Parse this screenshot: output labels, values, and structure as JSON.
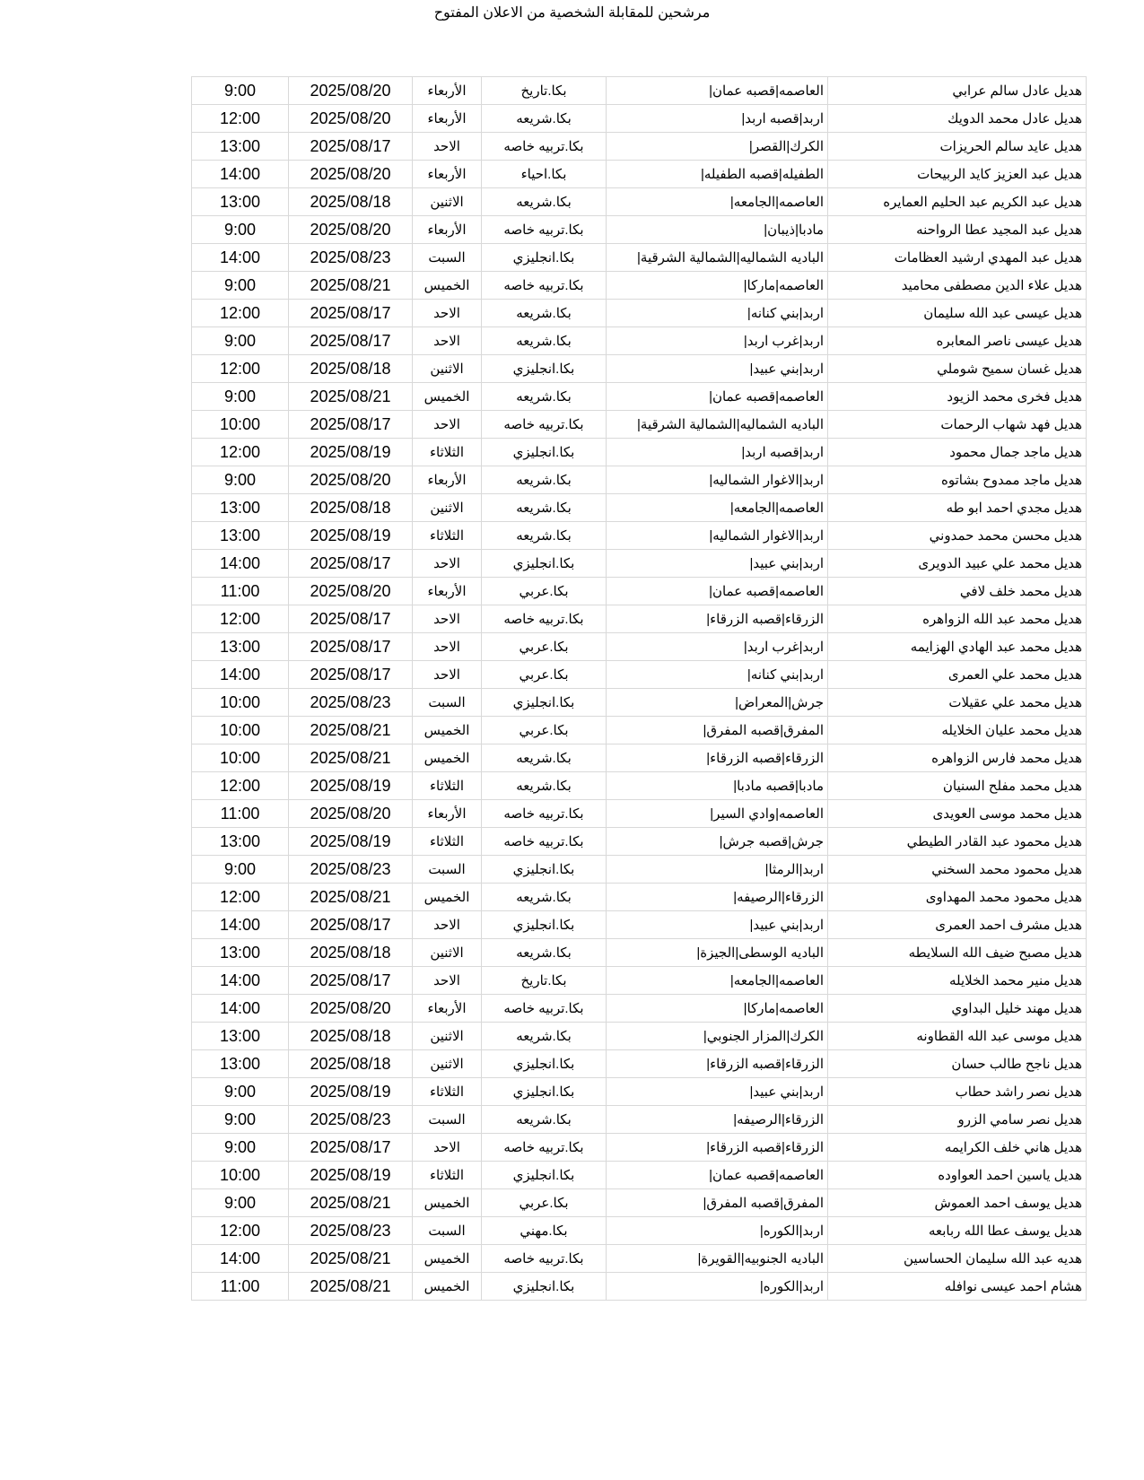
{
  "title": "مرشحين للمقابلة الشخصية من الاعلان المفتوح",
  "rows": [
    [
      "هديل عادل سالم عرابي",
      "العاصمه|قصبه عمان|",
      "بكا.تاريخ",
      "الأربعاء",
      "2025/08/20",
      "9:00"
    ],
    [
      "هديل عادل محمد الدويك",
      "اربد|قصبه اربد|",
      "بكا.شريعه",
      "الأربعاء",
      "2025/08/20",
      "12:00"
    ],
    [
      "هديل عايد سالم الحريزات",
      "الكرك|القصر|",
      "بكا.تربيه خاصه",
      "الاحد",
      "2025/08/17",
      "13:00"
    ],
    [
      "هديل عبد العزيز كايد الربيحات",
      "الطفيله|قصبه الطفيله|",
      "بكا.احياء",
      "الأربعاء",
      "2025/08/20",
      "14:00"
    ],
    [
      "هديل عبد الكريم عبد الحليم العمايره",
      "العاصمه|الجامعه|",
      "بكا.شريعه",
      "الاثنين",
      "2025/08/18",
      "13:00"
    ],
    [
      "هديل عبد المجيد عطا الرواحنه",
      "مادبا|ذيبان|",
      "بكا.تربيه خاصه",
      "الأربعاء",
      "2025/08/20",
      "9:00"
    ],
    [
      "هديل عبد المهدي ارشيد العظامات",
      "الباديه الشماليه|الشمالية الشرقية|",
      "بكا.انجليزي",
      "السبت",
      "2025/08/23",
      "14:00"
    ],
    [
      "هديل علاء الدين مصطفى محاميد",
      "العاصمه|ماركا|",
      "بكا.تربيه خاصه",
      "الخميس",
      "2025/08/21",
      "9:00"
    ],
    [
      "هديل عيسى عبد الله سليمان",
      "اربد|بني كنانه|",
      "بكا.شريعه",
      "الاحد",
      "2025/08/17",
      "12:00"
    ],
    [
      "هديل عيسى ناصر المعابره",
      "اربد|غرب اربد|",
      "بكا.شريعه",
      "الاحد",
      "2025/08/17",
      "9:00"
    ],
    [
      "هديل غسان سميح شوملي",
      "اربد|بني عبيد|",
      "بكا.انجليزي",
      "الاثنين",
      "2025/08/18",
      "12:00"
    ],
    [
      "هديل فخرى محمد الزيود",
      "العاصمه|قصبه عمان|",
      "بكا.شريعه",
      "الخميس",
      "2025/08/21",
      "9:00"
    ],
    [
      "هديل فهد شهاب الرحمات",
      "الباديه الشماليه|الشمالية الشرقية|",
      "بكا.تربيه خاصه",
      "الاحد",
      "2025/08/17",
      "10:00"
    ],
    [
      "هديل ماجد جمال محمود",
      "اربد|قصبه اربد|",
      "بكا.انجليزي",
      "الثلاثاء",
      "2025/08/19",
      "12:00"
    ],
    [
      "هديل ماجد ممدوح بشاتوه",
      "اربد|الاغوار الشماليه|",
      "بكا.شريعه",
      "الأربعاء",
      "2025/08/20",
      "9:00"
    ],
    [
      "هديل مجدي احمد ابو طه",
      "العاصمه|الجامعه|",
      "بكا.شريعه",
      "الاثنين",
      "2025/08/18",
      "13:00"
    ],
    [
      "هديل محسن محمد حمدوني",
      "اربد|الاغوار الشماليه|",
      "بكا.شريعه",
      "الثلاثاء",
      "2025/08/19",
      "13:00"
    ],
    [
      "هديل محمد  علي عبيد الدويرى",
      "اربد|بني عبيد|",
      "بكا.انجليزي",
      "الاحد",
      "2025/08/17",
      "14:00"
    ],
    [
      "هديل محمد خلف لافي",
      "العاصمه|قصبه عمان|",
      "بكا.عربي",
      "الأربعاء",
      "2025/08/20",
      "11:00"
    ],
    [
      "هديل محمد عبد الله الزواهره",
      "الزرقاء|قصبه الزرقاء|",
      "بكا.تربيه خاصه",
      "الاحد",
      "2025/08/17",
      "12:00"
    ],
    [
      "هديل محمد عبد الهادي الهزايمه",
      "اربد|غرب اربد|",
      "بكا.عربي",
      "الاحد",
      "2025/08/17",
      "13:00"
    ],
    [
      "هديل محمد علي العمرى",
      "اربد|بني كنانه|",
      "بكا.عربي",
      "الاحد",
      "2025/08/17",
      "14:00"
    ],
    [
      "هديل محمد علي عقيلات",
      "جرش|المعراض|",
      "بكا.انجليزي",
      "السبت",
      "2025/08/23",
      "10:00"
    ],
    [
      "هديل محمد عليان الخلايله",
      "المفرق|قصبه المفرق|",
      "بكا.عربي",
      "الخميس",
      "2025/08/21",
      "10:00"
    ],
    [
      "هديل محمد فارس الزواهره",
      "الزرقاء|قصبه الزرقاء|",
      "بكا.شريعه",
      "الخميس",
      "2025/08/21",
      "10:00"
    ],
    [
      "هديل محمد مفلح السنيان",
      "مادبا|قصبه مادبا|",
      "بكا.شريعه",
      "الثلاثاء",
      "2025/08/19",
      "12:00"
    ],
    [
      "هديل محمد موسى العويدى",
      "العاصمه|وادي السير|",
      "بكا.تربيه خاصه",
      "الأربعاء",
      "2025/08/20",
      "11:00"
    ],
    [
      "هديل محمود عبد القادر الطيطي",
      "جرش|قصبه جرش|",
      "بكا.تربيه خاصه",
      "الثلاثاء",
      "2025/08/19",
      "13:00"
    ],
    [
      "هديل محمود محمد السخني",
      "اربد|الرمثا|",
      "بكا.انجليزي",
      "السبت",
      "2025/08/23",
      "9:00"
    ],
    [
      "هديل محمود محمد المهداوى",
      "الزرقاء|الرصيفه|",
      "بكا.شريعه",
      "الخميس",
      "2025/08/21",
      "12:00"
    ],
    [
      "هديل مشرف احمد العمرى",
      "اربد|بني عبيد|",
      "بكا.انجليزي",
      "الاحد",
      "2025/08/17",
      "14:00"
    ],
    [
      "هديل مصبح ضيف الله السلايطه",
      "الباديه الوسطى|الجيزة|",
      "بكا.شريعه",
      "الاثنين",
      "2025/08/18",
      "13:00"
    ],
    [
      "هديل منير محمد الخلايله",
      "العاصمه|الجامعه|",
      "بكا.تاريخ",
      "الاحد",
      "2025/08/17",
      "14:00"
    ],
    [
      "هديل مهند خليل البداوي",
      "العاصمه|ماركا|",
      "بكا.تربيه خاصه",
      "الأربعاء",
      "2025/08/20",
      "14:00"
    ],
    [
      "هديل موسى عبد الله القطاونه",
      "الكرك|المزار الجنوبي|",
      "بكا.شريعه",
      "الاثنين",
      "2025/08/18",
      "13:00"
    ],
    [
      "هديل ناجح طالب حسان",
      "الزرقاء|قصبه الزرقاء|",
      "بكا.انجليزي",
      "الاثنين",
      "2025/08/18",
      "13:00"
    ],
    [
      "هديل نصر راشد حطاب",
      "اربد|بني عبيد|",
      "بكا.انجليزي",
      "الثلاثاء",
      "2025/08/19",
      "9:00"
    ],
    [
      "هديل نصر سامي الزرو",
      "الزرقاء|الرصيفه|",
      "بكا.شريعه",
      "السبت",
      "2025/08/23",
      "9:00"
    ],
    [
      "هديل هاني خلف الكرايمه",
      "الزرقاء|قصبه الزرقاء|",
      "بكا.تربيه خاصه",
      "الاحد",
      "2025/08/17",
      "9:00"
    ],
    [
      "هديل ياسين احمد العواوده",
      "العاصمه|قصبه عمان|",
      "بكا.انجليزي",
      "الثلاثاء",
      "2025/08/19",
      "10:00"
    ],
    [
      "هديل يوسف احمد العموش",
      "المفرق|قصبه المفرق|",
      "بكا.عربي",
      "الخميس",
      "2025/08/21",
      "9:00"
    ],
    [
      "هديل يوسف عطا الله ربابعه",
      "اربد|الكوره|",
      "بكا.مهني",
      "السبت",
      "2025/08/23",
      "12:00"
    ],
    [
      "هديه عبد الله سليمان الحساسين",
      "الباديه الجنوبيه|القويرة|",
      "بكا.تربيه خاصه",
      "الخميس",
      "2025/08/21",
      "14:00"
    ],
    [
      "هشام احمد عيسى نوافله",
      "اربد|الكوره|",
      "بكا.انجليزي",
      "الخميس",
      "2025/08/21",
      "11:00"
    ]
  ]
}
